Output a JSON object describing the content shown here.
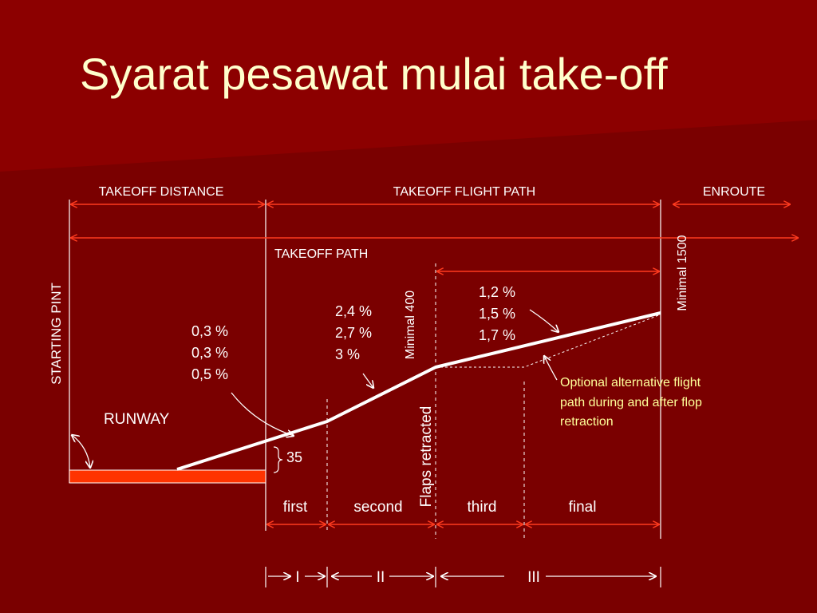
{
  "slide": {
    "title": "Syarat pesawat mulai take-off",
    "colors": {
      "background": "#7a0000",
      "title_text": "#ffffcc",
      "label_text": "#ffffff",
      "arrows": "#ff3b1f",
      "runway": "#ff3300",
      "note_text": "#ffff99"
    }
  },
  "diagram": {
    "sections": {
      "takeoff_distance": "TAKEOFF DISTANCE",
      "takeoff_flight_path": "TAKEOFF FLIGHT PATH",
      "enroute": "ENROUTE",
      "takeoff_path": "TAKEOFF PATH"
    },
    "starting_point": "STARTING PINT",
    "runway": "RUNWAY",
    "minimal_400": "Minimal 400",
    "minimal_1500": "Minimal 1500",
    "flaps_retracted": "Flaps retracted",
    "height_35": "35",
    "gradients": {
      "first": [
        "0,3 %",
        "0,3 %",
        "0,5 %"
      ],
      "second": [
        "2,4 %",
        "2,7 %",
        "3 %"
      ],
      "final": [
        "1,2 %",
        "1,5 %",
        "1,7 %"
      ]
    },
    "optional_note": [
      "Optional alternative flight",
      "path during and after flop",
      "retraction"
    ],
    "segments": {
      "first": "first",
      "second": "second",
      "third": "third",
      "final": "final"
    },
    "phases": {
      "one": "I",
      "two": "II",
      "three": "III"
    }
  }
}
